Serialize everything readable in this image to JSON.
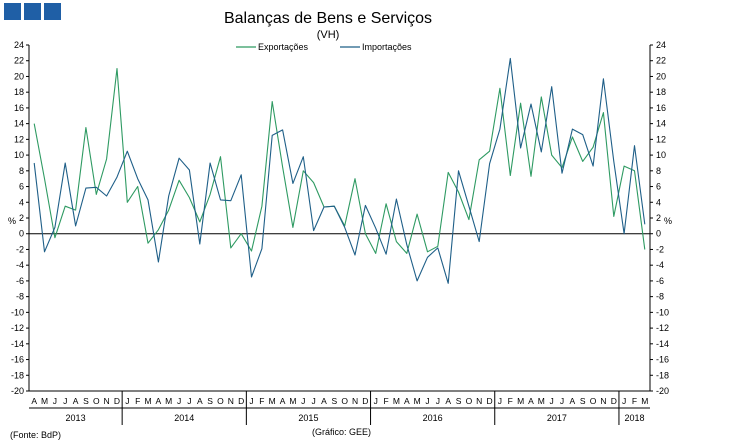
{
  "header_squares": 3,
  "chart_data": {
    "type": "line",
    "title": "Balanças de Bens e Serviços",
    "subtitle": "(VH)",
    "ylabel": "%",
    "ylim": [
      -20,
      24
    ],
    "yticks": [
      24,
      22,
      20,
      18,
      16,
      14,
      12,
      10,
      8,
      6,
      4,
      2,
      0,
      -2,
      -4,
      -6,
      -8,
      -10,
      -12,
      -14,
      -16,
      -18,
      -20
    ],
    "grid": false,
    "legend_position": "top-center",
    "months": [
      "A",
      "M",
      "J",
      "J",
      "A",
      "S",
      "O",
      "N",
      "D",
      "J",
      "F",
      "M",
      "A",
      "M",
      "J",
      "J",
      "A",
      "S",
      "O",
      "N",
      "D",
      "J",
      "F",
      "M",
      "A",
      "M",
      "J",
      "J",
      "A",
      "S",
      "O",
      "N",
      "D",
      "J",
      "F",
      "M",
      "A",
      "M",
      "J",
      "J",
      "A",
      "S",
      "O",
      "N",
      "D",
      "J",
      "F",
      "M",
      "A",
      "M",
      "J",
      "J",
      "A",
      "S",
      "O",
      "N",
      "D",
      "J",
      "F",
      "M"
    ],
    "years": [
      {
        "label": "2013",
        "start": 0,
        "end": 8
      },
      {
        "label": "2014",
        "start": 9,
        "end": 20
      },
      {
        "label": "2015",
        "start": 21,
        "end": 32
      },
      {
        "label": "2016",
        "start": 33,
        "end": 44
      },
      {
        "label": "2017",
        "start": 45,
        "end": 56
      },
      {
        "label": "2018",
        "start": 57,
        "end": 59
      }
    ],
    "series": [
      {
        "name": "Exportações",
        "color": "#2e9a62",
        "values": [
          14,
          7,
          -0.5,
          3.5,
          3,
          13.5,
          5,
          9.5,
          21,
          4,
          6,
          -1.2,
          0.5,
          3,
          6.8,
          4.6,
          1.5,
          5,
          9.8,
          -1.8,
          0,
          -2.2,
          3.5,
          16.8,
          8.5,
          0.8,
          8,
          6.5,
          3.4,
          3.5,
          1,
          7,
          0,
          -2.5,
          3.8,
          -1,
          -2.5,
          2.5,
          -2.3,
          -1.6,
          7.8,
          5.3,
          1.8,
          9.4,
          10.5,
          18.5,
          7.4,
          16.6,
          7.3,
          17.4,
          10,
          8.4,
          12.3,
          9.2,
          11,
          15.4,
          2.2,
          8.6,
          8,
          -2
        ]
      },
      {
        "name": "Importações",
        "color": "#1f5f88",
        "values": [
          9,
          -2.3,
          0.8,
          9,
          1,
          5.8,
          5.9,
          4.8,
          7.2,
          10.5,
          7,
          4.3,
          -3.6,
          4.8,
          9.6,
          8.1,
          -1.3,
          9,
          4.3,
          4.2,
          7.5,
          -5.5,
          -1.9,
          12.5,
          13.2,
          6.4,
          9.8,
          0.4,
          3.4,
          3.5,
          0.8,
          -2.7,
          3.6,
          0.7,
          -2.6,
          4.4,
          -1.4,
          -6,
          -3,
          -1.8,
          -6.3,
          8,
          3.5,
          -1,
          8.9,
          13.3,
          22.3,
          10.9,
          16.5,
          10.4,
          18.7,
          7.7,
          13.3,
          12.6,
          8.6,
          19.7,
          9.2,
          0,
          11.2,
          1.2
        ]
      }
    ]
  },
  "footer": {
    "source": "(Fonte: BdP)",
    "credit": "(Gráfico: GEE)"
  }
}
